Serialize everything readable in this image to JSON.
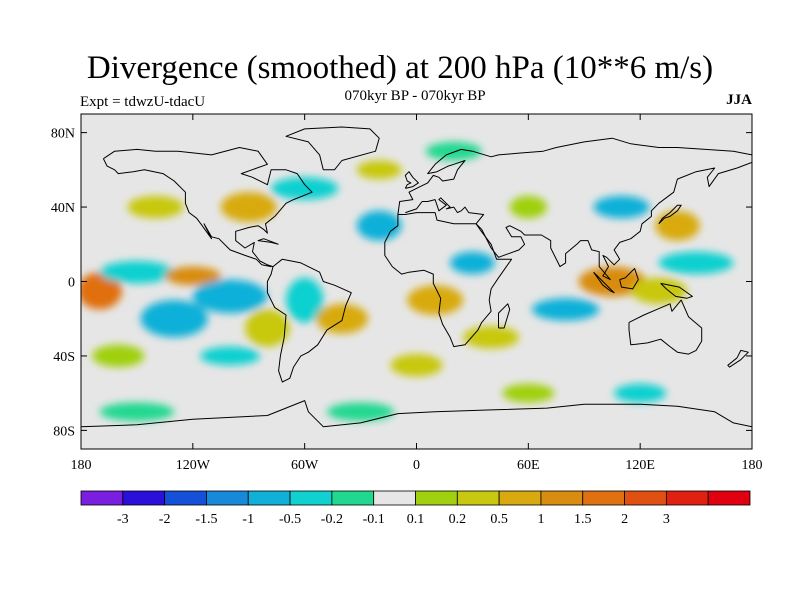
{
  "title": "Divergence (smoothed) at 200 hPa (10**6 m/s)",
  "subtitle": "070kyr BP - 070kyr BP",
  "experiment": "Expt = tdwzU-tdacU",
  "season": "JJA",
  "map": {
    "projection": "cylindrical equidistant",
    "lon_range": [
      -180,
      180
    ],
    "lat_range": [
      -90,
      90
    ],
    "lat_ticks": [
      {
        "value": 80,
        "label": "80N"
      },
      {
        "value": 40,
        "label": "40N"
      },
      {
        "value": 0,
        "label": "0"
      },
      {
        "value": -40,
        "label": "40S"
      },
      {
        "value": -80,
        "label": "80S"
      }
    ],
    "lon_ticks": [
      {
        "value": -180,
        "label": "180"
      },
      {
        "value": -120,
        "label": "120W"
      },
      {
        "value": -60,
        "label": "60W"
      },
      {
        "value": 0,
        "label": "0"
      },
      {
        "value": 60,
        "label": "60E"
      },
      {
        "value": 120,
        "label": "120E"
      },
      {
        "value": 180,
        "label": "180"
      }
    ]
  },
  "colorbar": {
    "colors": [
      "#7a1fe0",
      "#2a10d8",
      "#1450d8",
      "#1888d8",
      "#10b0d8",
      "#10d0d0",
      "#20d890",
      "#e6e6e6",
      "#a0d010",
      "#c8c810",
      "#d8aa10",
      "#d88c10",
      "#e07010",
      "#e05010",
      "#e02010",
      "#e00010"
    ],
    "labels": [
      "-3",
      "-2",
      "-1.5",
      "-1",
      "-0.5",
      "-0.2",
      "-0.1",
      "0.1",
      "0.2",
      "0.5",
      "1",
      "1.5",
      "2",
      "3"
    ]
  },
  "field_blobs": [
    {
      "lon": -170,
      "lat": -5,
      "rx": 12,
      "ry": 10,
      "c": 12
    },
    {
      "lon": -150,
      "lat": 5,
      "rx": 20,
      "ry": 6,
      "c": 5
    },
    {
      "lon": -130,
      "lat": -20,
      "rx": 18,
      "ry": 10,
      "c": 4
    },
    {
      "lon": -120,
      "lat": 3,
      "rx": 15,
      "ry": 5,
      "c": 11
    },
    {
      "lon": -100,
      "lat": -8,
      "rx": 20,
      "ry": 9,
      "c": 4
    },
    {
      "lon": -80,
      "lat": -25,
      "rx": 12,
      "ry": 10,
      "c": 9
    },
    {
      "lon": -60,
      "lat": -10,
      "rx": 10,
      "ry": 12,
      "c": 5
    },
    {
      "lon": -40,
      "lat": -20,
      "rx": 14,
      "ry": 8,
      "c": 10
    },
    {
      "lon": -90,
      "lat": 40,
      "rx": 15,
      "ry": 8,
      "c": 10
    },
    {
      "lon": -60,
      "lat": 50,
      "rx": 18,
      "ry": 6,
      "c": 5
    },
    {
      "lon": -20,
      "lat": 30,
      "rx": 12,
      "ry": 8,
      "c": 4
    },
    {
      "lon": 10,
      "lat": -10,
      "rx": 15,
      "ry": 8,
      "c": 10
    },
    {
      "lon": 30,
      "lat": 10,
      "rx": 12,
      "ry": 6,
      "c": 4
    },
    {
      "lon": 40,
      "lat": -30,
      "rx": 15,
      "ry": 6,
      "c": 9
    },
    {
      "lon": 60,
      "lat": 40,
      "rx": 10,
      "ry": 6,
      "c": 8
    },
    {
      "lon": 80,
      "lat": -15,
      "rx": 18,
      "ry": 6,
      "c": 4
    },
    {
      "lon": 105,
      "lat": 0,
      "rx": 18,
      "ry": 8,
      "c": 11
    },
    {
      "lon": 130,
      "lat": -5,
      "rx": 15,
      "ry": 7,
      "c": 9
    },
    {
      "lon": 150,
      "lat": 10,
      "rx": 20,
      "ry": 6,
      "c": 5
    },
    {
      "lon": 140,
      "lat": 30,
      "rx": 12,
      "ry": 8,
      "c": 10
    },
    {
      "lon": 110,
      "lat": 40,
      "rx": 15,
      "ry": 6,
      "c": 4
    },
    {
      "lon": -140,
      "lat": 40,
      "rx": 15,
      "ry": 6,
      "c": 9
    },
    {
      "lon": -160,
      "lat": -40,
      "rx": 14,
      "ry": 6,
      "c": 8
    },
    {
      "lon": -100,
      "lat": -40,
      "rx": 16,
      "ry": 5,
      "c": 5
    },
    {
      "lon": 0,
      "lat": -45,
      "rx": 14,
      "ry": 6,
      "c": 9
    },
    {
      "lon": 60,
      "lat": -60,
      "rx": 14,
      "ry": 5,
      "c": 8
    },
    {
      "lon": -150,
      "lat": -70,
      "rx": 20,
      "ry": 5,
      "c": 6
    },
    {
      "lon": -30,
      "lat": -70,
      "rx": 18,
      "ry": 5,
      "c": 6
    },
    {
      "lon": 120,
      "lat": -60,
      "rx": 14,
      "ry": 5,
      "c": 5
    },
    {
      "lon": 20,
      "lat": 70,
      "rx": 15,
      "ry": 5,
      "c": 6
    },
    {
      "lon": -20,
      "lat": 60,
      "rx": 12,
      "ry": 5,
      "c": 9
    }
  ],
  "coastlines": [
    [
      [
        -168,
        66
      ],
      [
        -162,
        70
      ],
      [
        -150,
        71
      ],
      [
        -140,
        70
      ],
      [
        -128,
        70
      ],
      [
        -110,
        68
      ],
      [
        -95,
        72
      ],
      [
        -85,
        70
      ],
      [
        -80,
        63
      ],
      [
        -94,
        58
      ],
      [
        -88,
        56
      ],
      [
        -80,
        52
      ],
      [
        -78,
        60
      ],
      [
        -70,
        60
      ],
      [
        -64,
        58
      ],
      [
        -60,
        52
      ],
      [
        -56,
        48
      ],
      [
        -66,
        44
      ],
      [
        -70,
        42
      ],
      [
        -76,
        35
      ],
      [
        -81,
        31
      ],
      [
        -80,
        26
      ],
      [
        -82,
        28
      ],
      [
        -85,
        30
      ],
      [
        -90,
        29
      ],
      [
        -97,
        27
      ],
      [
        -97,
        22
      ],
      [
        -92,
        18
      ],
      [
        -87,
        21
      ],
      [
        -88,
        16
      ],
      [
        -84,
        11
      ],
      [
        -80,
        9
      ],
      [
        -78,
        8
      ],
      [
        -83,
        9
      ],
      [
        -86,
        12
      ],
      [
        -92,
        14
      ],
      [
        -100,
        17
      ],
      [
        -106,
        23
      ],
      [
        -110,
        24
      ],
      [
        -114,
        31
      ],
      [
        -110,
        23
      ],
      [
        -115,
        30
      ],
      [
        -118,
        34
      ],
      [
        -122,
        37
      ],
      [
        -124,
        42
      ],
      [
        -124,
        48
      ],
      [
        -130,
        54
      ],
      [
        -136,
        58
      ],
      [
        -146,
        60
      ],
      [
        -152,
        59
      ],
      [
        -160,
        58
      ],
      [
        -162,
        60
      ],
      [
        -166,
        62
      ],
      [
        -168,
        66
      ]
    ],
    [
      [
        -80,
        9
      ],
      [
        -77,
        8
      ],
      [
        -72,
        12
      ],
      [
        -62,
        10
      ],
      [
        -52,
        5
      ],
      [
        -50,
        0
      ],
      [
        -44,
        -2
      ],
      [
        -35,
        -6
      ],
      [
        -38,
        -13
      ],
      [
        -40,
        -21
      ],
      [
        -48,
        -26
      ],
      [
        -53,
        -34
      ],
      [
        -58,
        -38
      ],
      [
        -62,
        -40
      ],
      [
        -66,
        -46
      ],
      [
        -68,
        -52
      ],
      [
        -72,
        -54
      ],
      [
        -74,
        -48
      ],
      [
        -73,
        -40
      ],
      [
        -71,
        -30
      ],
      [
        -70,
        -18
      ],
      [
        -76,
        -14
      ],
      [
        -80,
        -6
      ],
      [
        -80,
        0
      ],
      [
        -78,
        4
      ],
      [
        -77,
        8
      ],
      [
        -80,
        9
      ]
    ],
    [
      [
        -10,
        36
      ],
      [
        -6,
        36
      ],
      [
        0,
        37
      ],
      [
        10,
        37
      ],
      [
        11,
        33
      ],
      [
        20,
        31
      ],
      [
        32,
        31
      ],
      [
        34,
        28
      ],
      [
        40,
        20
      ],
      [
        43,
        12
      ],
      [
        51,
        12
      ],
      [
        44,
        2
      ],
      [
        40,
        -4
      ],
      [
        39,
        -10
      ],
      [
        40,
        -16
      ],
      [
        35,
        -22
      ],
      [
        33,
        -26
      ],
      [
        26,
        -34
      ],
      [
        20,
        -35
      ],
      [
        18,
        -30
      ],
      [
        14,
        -23
      ],
      [
        12,
        -17
      ],
      [
        13,
        -9
      ],
      [
        9,
        -1
      ],
      [
        9,
        4
      ],
      [
        4,
        6
      ],
      [
        -4,
        5
      ],
      [
        -8,
        4
      ],
      [
        -13,
        8
      ],
      [
        -17,
        14
      ],
      [
        -17,
        21
      ],
      [
        -14,
        27
      ],
      [
        -10,
        30
      ],
      [
        -10,
        36
      ]
    ],
    [
      [
        -10,
        36
      ],
      [
        -9,
        43
      ],
      [
        -2,
        44
      ],
      [
        -4,
        48
      ],
      [
        2,
        51
      ],
      [
        6,
        53
      ],
      [
        9,
        57
      ],
      [
        12,
        56
      ],
      [
        14,
        54
      ],
      [
        20,
        55
      ],
      [
        22,
        60
      ],
      [
        26,
        65
      ],
      [
        20,
        63
      ],
      [
        17,
        62
      ],
      [
        11,
        59
      ],
      [
        6,
        58
      ],
      [
        10,
        63
      ],
      [
        16,
        68
      ],
      [
        24,
        71
      ],
      [
        30,
        70
      ],
      [
        40,
        67
      ],
      [
        44,
        68
      ],
      [
        55,
        69
      ],
      [
        68,
        70
      ],
      [
        75,
        72
      ],
      [
        90,
        75
      ],
      [
        105,
        77
      ],
      [
        115,
        74
      ],
      [
        130,
        72
      ],
      [
        140,
        72
      ],
      [
        155,
        71
      ],
      [
        170,
        70
      ],
      [
        180,
        68
      ]
    ],
    [
      [
        180,
        64
      ],
      [
        172,
        61
      ],
      [
        162,
        58
      ],
      [
        157,
        51
      ],
      [
        156,
        56
      ],
      [
        160,
        61
      ],
      [
        150,
        59
      ],
      [
        140,
        55
      ],
      [
        138,
        48
      ],
      [
        130,
        42
      ],
      [
        126,
        38
      ],
      [
        126,
        35
      ],
      [
        121,
        31
      ],
      [
        120,
        27
      ],
      [
        115,
        23
      ],
      [
        109,
        21
      ],
      [
        106,
        17
      ],
      [
        109,
        12
      ],
      [
        106,
        9
      ],
      [
        102,
        13
      ],
      [
        100,
        14
      ],
      [
        103,
        8
      ],
      [
        100,
        3
      ],
      [
        104,
        1
      ],
      [
        98,
        8
      ],
      [
        98,
        16
      ],
      [
        94,
        17
      ],
      [
        92,
        22
      ],
      [
        88,
        22
      ],
      [
        86,
        20
      ],
      [
        80,
        15
      ],
      [
        80,
        10
      ],
      [
        77,
        8
      ],
      [
        72,
        18
      ],
      [
        72,
        22
      ],
      [
        67,
        25
      ],
      [
        58,
        25
      ],
      [
        56,
        27
      ],
      [
        50,
        30
      ],
      [
        48,
        29
      ],
      [
        51,
        24
      ],
      [
        56,
        24
      ],
      [
        58,
        20
      ],
      [
        55,
        17
      ],
      [
        44,
        13
      ],
      [
        40,
        18
      ],
      [
        35,
        28
      ],
      [
        32,
        31
      ],
      [
        36,
        36
      ],
      [
        28,
        37
      ],
      [
        26,
        40
      ],
      [
        24,
        38
      ],
      [
        22,
        37
      ],
      [
        20,
        40
      ],
      [
        16,
        39
      ],
      [
        18,
        40
      ],
      [
        13,
        45
      ],
      [
        12,
        44
      ],
      [
        16,
        41
      ],
      [
        12,
        38
      ],
      [
        10,
        44
      ],
      [
        6,
        43
      ],
      [
        3,
        43
      ],
      [
        0,
        39
      ],
      [
        -6,
        37
      ]
    ],
    [
      [
        114,
        -22
      ],
      [
        122,
        -18
      ],
      [
        129,
        -15
      ],
      [
        136,
        -12
      ],
      [
        137,
        -16
      ],
      [
        142,
        -10
      ],
      [
        146,
        -19
      ],
      [
        153,
        -25
      ],
      [
        153,
        -32
      ],
      [
        150,
        -37
      ],
      [
        146,
        -39
      ],
      [
        140,
        -38
      ],
      [
        136,
        -35
      ],
      [
        131,
        -31
      ],
      [
        124,
        -33
      ],
      [
        115,
        -34
      ],
      [
        114,
        -26
      ],
      [
        114,
        -22
      ]
    ],
    [
      [
        -180,
        -78
      ],
      [
        -150,
        -77
      ],
      [
        -120,
        -74
      ],
      [
        -100,
        -73
      ],
      [
        -80,
        -72
      ],
      [
        -60,
        -64
      ],
      [
        -58,
        -70
      ],
      [
        -50,
        -78
      ],
      [
        -30,
        -76
      ],
      [
        -10,
        -71
      ],
      [
        10,
        -70
      ],
      [
        40,
        -69
      ],
      [
        70,
        -68
      ],
      [
        90,
        -66
      ],
      [
        120,
        -66
      ],
      [
        140,
        -67
      ],
      [
        160,
        -70
      ],
      [
        170,
        -76
      ],
      [
        180,
        -78
      ]
    ],
    [
      [
        -50,
        60
      ],
      [
        -44,
        60
      ],
      [
        -40,
        65
      ],
      [
        -22,
        70
      ],
      [
        -20,
        77
      ],
      [
        -25,
        82
      ],
      [
        -40,
        83
      ],
      [
        -60,
        82
      ],
      [
        -70,
        78
      ],
      [
        -58,
        75
      ],
      [
        -52,
        68
      ],
      [
        -50,
        60
      ]
    ],
    [
      [
        -6,
        50
      ],
      [
        -2,
        51
      ],
      [
        1,
        53
      ],
      [
        -2,
        56
      ],
      [
        -4,
        59
      ],
      [
        -6,
        57
      ],
      [
        -5,
        54
      ],
      [
        -3,
        53
      ],
      [
        -5,
        52
      ],
      [
        -6,
        50
      ]
    ],
    [
      [
        130,
        31
      ],
      [
        133,
        34
      ],
      [
        136,
        35
      ],
      [
        140,
        38
      ],
      [
        142,
        41
      ],
      [
        140,
        41
      ],
      [
        136,
        37
      ],
      [
        132,
        34
      ],
      [
        130,
        31
      ]
    ],
    [
      [
        95,
        5
      ],
      [
        100,
        0
      ],
      [
        106,
        -6
      ],
      [
        104,
        -5
      ],
      [
        100,
        -2
      ],
      [
        95,
        5
      ]
    ],
    [
      [
        109,
        1
      ],
      [
        110,
        -3
      ],
      [
        116,
        -4
      ],
      [
        119,
        1
      ],
      [
        117,
        7
      ],
      [
        112,
        2
      ],
      [
        109,
        1
      ]
    ],
    [
      [
        131,
        -1
      ],
      [
        141,
        -3
      ],
      [
        148,
        -8
      ],
      [
        145,
        -9
      ],
      [
        139,
        -8
      ],
      [
        134,
        -4
      ],
      [
        131,
        -1
      ]
    ],
    [
      [
        44,
        -25
      ],
      [
        47,
        -25
      ],
      [
        50,
        -15
      ],
      [
        49,
        -12
      ],
      [
        44,
        -17
      ],
      [
        44,
        -25
      ]
    ],
    [
      [
        172,
        -41
      ],
      [
        174,
        -37
      ],
      [
        178,
        -38
      ],
      [
        174,
        -42
      ],
      [
        168,
        -46
      ],
      [
        167,
        -45
      ],
      [
        172,
        -41
      ]
    ],
    [
      [
        -74,
        20
      ],
      [
        -82,
        23
      ],
      [
        -85,
        22
      ],
      [
        -78,
        21
      ],
      [
        -74,
        20
      ]
    ]
  ]
}
